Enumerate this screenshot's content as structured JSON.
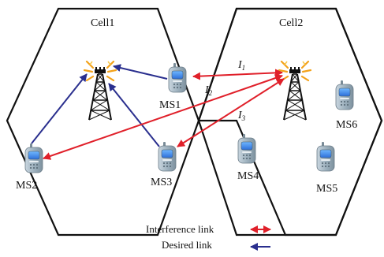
{
  "cells": [
    {
      "id": "cell1",
      "label": "Cell1"
    },
    {
      "id": "cell2",
      "label": "Cell2"
    }
  ],
  "stations": [
    {
      "id": "ms1",
      "label": "MS1"
    },
    {
      "id": "ms2",
      "label": "MS2"
    },
    {
      "id": "ms3",
      "label": "MS3"
    },
    {
      "id": "ms4",
      "label": "MS4"
    },
    {
      "id": "ms5",
      "label": "MS5"
    },
    {
      "id": "ms6",
      "label": "MS6"
    }
  ],
  "interference": [
    {
      "id": "i1",
      "letter": "I",
      "sub": "1"
    },
    {
      "id": "i2",
      "letter": "I",
      "sub": "2"
    },
    {
      "id": "i3",
      "letter": "I",
      "sub": "3"
    }
  ],
  "legend": {
    "interference_label": "Interference link",
    "desired_label": "Desired link"
  },
  "colors": {
    "interference": "#e0202a",
    "desired": "#2a2f8e",
    "hexagon": "#111111",
    "tower": "#111111",
    "spark": "#f3a21a",
    "phone_body": "#9fb2bf"
  },
  "icons": {
    "tower": "base-station-tower-icon",
    "phone": "mobile-phone-icon"
  }
}
